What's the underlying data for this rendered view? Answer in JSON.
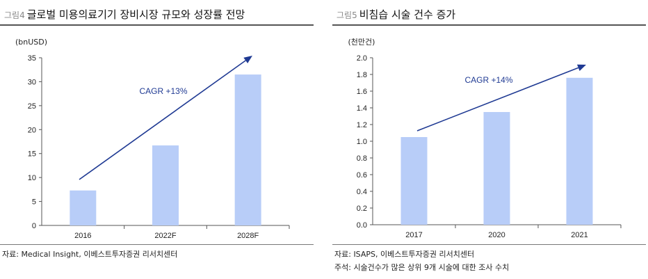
{
  "left": {
    "fig_label": "그림4",
    "title": "글로벌 미용의료기기 장비시장 규모와 성장률 전망",
    "source": "자료: Medical Insight, 이베스트투자증권 리서치센터"
  },
  "right": {
    "fig_label": "그림5",
    "title": "비침습 시술 건수 증가",
    "source": "자료: ISAPS, 이베스트투자증권 리서치센터",
    "note": "주석: 시술건수가 많은 상위 9개 시술에 대한 조사 수치"
  },
  "colors": {
    "bar": "#b8cdf8",
    "arrow": "#1f3a93",
    "axis": "#555555"
  },
  "chart_data": [
    {
      "type": "bar",
      "title": "글로벌 미용의료기기 장비시장 규모와 성장률 전망",
      "unit": "(bnUSD)",
      "categories": [
        "2016",
        "2022F",
        "2028F"
      ],
      "values": [
        7.3,
        16.7,
        31.5
      ],
      "ylim": [
        0,
        35
      ],
      "yticks": [
        "0",
        "5",
        "10",
        "15",
        "20",
        "25",
        "30",
        "35"
      ],
      "ytick_values": [
        0,
        5,
        10,
        15,
        20,
        25,
        30,
        35
      ],
      "annotation": "CAGR +13%",
      "grid": false,
      "legend": "none"
    },
    {
      "type": "bar",
      "title": "비침습 시술 건수 증가",
      "unit": "(천만건)",
      "categories": [
        "2017",
        "2020",
        "2021"
      ],
      "values": [
        1.05,
        1.35,
        1.76
      ],
      "ylim": [
        0,
        2.0
      ],
      "yticks": [
        "0.0",
        "0.2",
        "0.4",
        "0.6",
        "0.8",
        "1.0",
        "1.2",
        "1.4",
        "1.6",
        "1.8",
        "2.0"
      ],
      "ytick_values": [
        0,
        0.2,
        0.4,
        0.6,
        0.8,
        1.0,
        1.2,
        1.4,
        1.6,
        1.8,
        2.0
      ],
      "annotation": "CAGR +14%",
      "grid": false,
      "legend": "none"
    }
  ]
}
